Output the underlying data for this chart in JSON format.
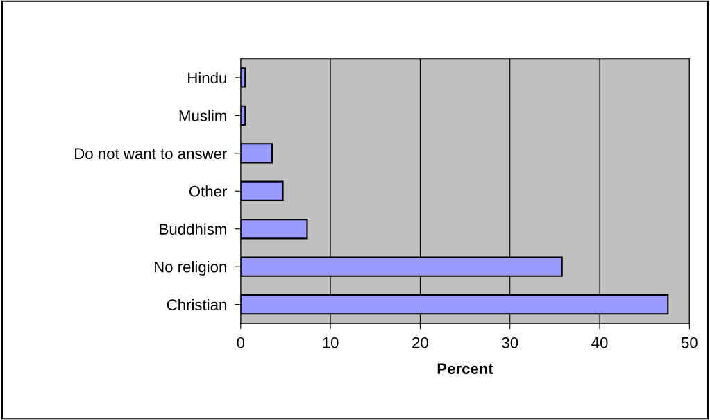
{
  "chart_data": {
    "type": "bar",
    "orientation": "horizontal",
    "xlabel": "Percent",
    "categories": [
      "Hindu",
      "Muslim",
      "Do not want to answer",
      "Other",
      "Buddhism",
      "No religion",
      "Christian"
    ],
    "values": [
      0.5,
      0.5,
      3.5,
      4.7,
      7.4,
      35.8,
      47.6
    ],
    "color": "#9999ff",
    "xlim": [
      0,
      50
    ],
    "xticks": [
      0,
      10,
      20,
      30,
      40,
      50
    ],
    "grid": "x",
    "legend": false
  }
}
